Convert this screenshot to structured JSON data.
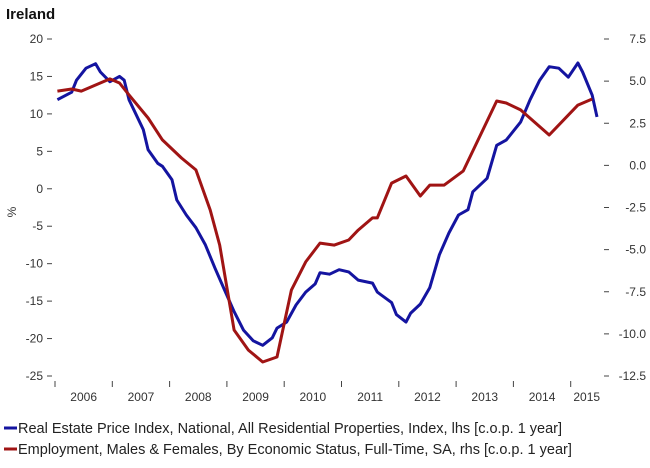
{
  "chart_data": {
    "type": "line",
    "title": "Ireland",
    "ylabel": "%",
    "y_left": {
      "range": [
        -25,
        20
      ],
      "ticks": [
        "20",
        "15",
        "10",
        "5",
        "0",
        "-5",
        "-10",
        "-15",
        "-20",
        "-25"
      ]
    },
    "y_right": {
      "range": [
        -12.5,
        7.5
      ],
      "ticks": [
        "7.5",
        "5.0",
        "2.5",
        "0.0",
        "-2.5",
        "-5.0",
        "-7.5",
        "-10.0",
        "-12.5"
      ]
    },
    "x_range": [
      "2006-01",
      "2015-06"
    ],
    "x_ticks": [
      "2006",
      "2007",
      "2008",
      "2009",
      "2010",
      "2011",
      "2012",
      "2013",
      "2014",
      "2015"
    ],
    "grid": false,
    "legend_placement": "bottom",
    "series": [
      {
        "name": "Real Estate Price Index, National, All Residential Properties, Index, lhs [c.o.p. 1 year]",
        "axis": "left",
        "color": "#1414a0",
        "points": [
          [
            "2006-01",
            11.9
          ],
          [
            "2006-04",
            12.9
          ],
          [
            "2006-05",
            14.5
          ],
          [
            "2006-07",
            16.1
          ],
          [
            "2006-09",
            16.7
          ],
          [
            "2006-10",
            15.6
          ],
          [
            "2006-12",
            14.3
          ],
          [
            "2007-02",
            15.0
          ],
          [
            "2007-03",
            14.5
          ],
          [
            "2007-04",
            11.9
          ],
          [
            "2007-07",
            7.9
          ],
          [
            "2007-08",
            5.2
          ],
          [
            "2007-10",
            3.4
          ],
          [
            "2007-11",
            3.0
          ],
          [
            "2008-01",
            1.2
          ],
          [
            "2008-02",
            -1.5
          ],
          [
            "2008-04",
            -3.5
          ],
          [
            "2008-06",
            -5.2
          ],
          [
            "2008-08",
            -7.5
          ],
          [
            "2008-10",
            -10.6
          ],
          [
            "2008-12",
            -13.5
          ],
          [
            "2009-02",
            -16.4
          ],
          [
            "2009-04",
            -18.9
          ],
          [
            "2009-06",
            -20.3
          ],
          [
            "2009-08",
            -20.9
          ],
          [
            "2009-10",
            -19.9
          ],
          [
            "2009-11",
            -18.6
          ],
          [
            "2010-01",
            -17.8
          ],
          [
            "2010-03",
            -15.5
          ],
          [
            "2010-05",
            -13.8
          ],
          [
            "2010-07",
            -12.7
          ],
          [
            "2010-08",
            -11.2
          ],
          [
            "2010-10",
            -11.4
          ],
          [
            "2010-12",
            -10.8
          ],
          [
            "2011-02",
            -11.1
          ],
          [
            "2011-04",
            -12.2
          ],
          [
            "2011-07",
            -12.6
          ],
          [
            "2011-08",
            -13.8
          ],
          [
            "2011-11",
            -15.2
          ],
          [
            "2011-12",
            -16.8
          ],
          [
            "2012-02",
            -17.8
          ],
          [
            "2012-03",
            -16.6
          ],
          [
            "2012-05",
            -15.4
          ],
          [
            "2012-07",
            -13.2
          ],
          [
            "2012-09",
            -8.8
          ],
          [
            "2012-11",
            -5.9
          ],
          [
            "2013-01",
            -3.5
          ],
          [
            "2013-03",
            -2.8
          ],
          [
            "2013-04",
            -0.4
          ],
          [
            "2013-07",
            1.4
          ],
          [
            "2013-09",
            5.8
          ],
          [
            "2013-11",
            6.5
          ],
          [
            "2014-01",
            8.1
          ],
          [
            "2014-02",
            8.9
          ],
          [
            "2014-04",
            11.9
          ],
          [
            "2014-06",
            14.5
          ],
          [
            "2014-08",
            16.3
          ],
          [
            "2014-10",
            16.1
          ],
          [
            "2014-12",
            14.9
          ],
          [
            "2015-02",
            16.8
          ],
          [
            "2015-03",
            15.6
          ],
          [
            "2015-05",
            12.5
          ],
          [
            "2015-06",
            9.6
          ]
        ]
      },
      {
        "name": "Employment, Males & Females, By Economic Status, Full-Time, SA, rhs [c.o.p. 1 year]",
        "axis": "right",
        "color": "#a01414",
        "points": [
          [
            "2006-01",
            4.41
          ],
          [
            "2006-04",
            4.53
          ],
          [
            "2006-06",
            4.41
          ],
          [
            "2006-09",
            4.77
          ],
          [
            "2006-12",
            5.13
          ],
          [
            "2007-02",
            4.89
          ],
          [
            "2007-04",
            4.18
          ],
          [
            "2007-08",
            2.81
          ],
          [
            "2007-11",
            1.51
          ],
          [
            "2008-03",
            0.44
          ],
          [
            "2008-06",
            -0.27
          ],
          [
            "2008-09",
            -2.65
          ],
          [
            "2008-11",
            -4.73
          ],
          [
            "2009-02",
            -9.77
          ],
          [
            "2009-05",
            -10.96
          ],
          [
            "2009-08",
            -11.67
          ],
          [
            "2009-11",
            -11.37
          ],
          [
            "2010-02",
            -7.4
          ],
          [
            "2010-05",
            -5.73
          ],
          [
            "2010-08",
            -4.61
          ],
          [
            "2010-11",
            -4.73
          ],
          [
            "2011-02",
            -4.43
          ],
          [
            "2011-04",
            -3.84
          ],
          [
            "2011-07",
            -3.12
          ],
          [
            "2011-08",
            -3.12
          ],
          [
            "2011-11",
            -1.05
          ],
          [
            "2012-02",
            -0.63
          ],
          [
            "2012-05",
            -1.82
          ],
          [
            "2012-07",
            -1.17
          ],
          [
            "2012-10",
            -1.17
          ],
          [
            "2013-02",
            -0.33
          ],
          [
            "2013-09",
            3.82
          ],
          [
            "2013-11",
            3.7
          ],
          [
            "2014-02",
            3.29
          ],
          [
            "2014-08",
            1.8
          ],
          [
            "2015-02",
            3.58
          ],
          [
            "2015-05",
            3.94
          ]
        ]
      }
    ]
  }
}
